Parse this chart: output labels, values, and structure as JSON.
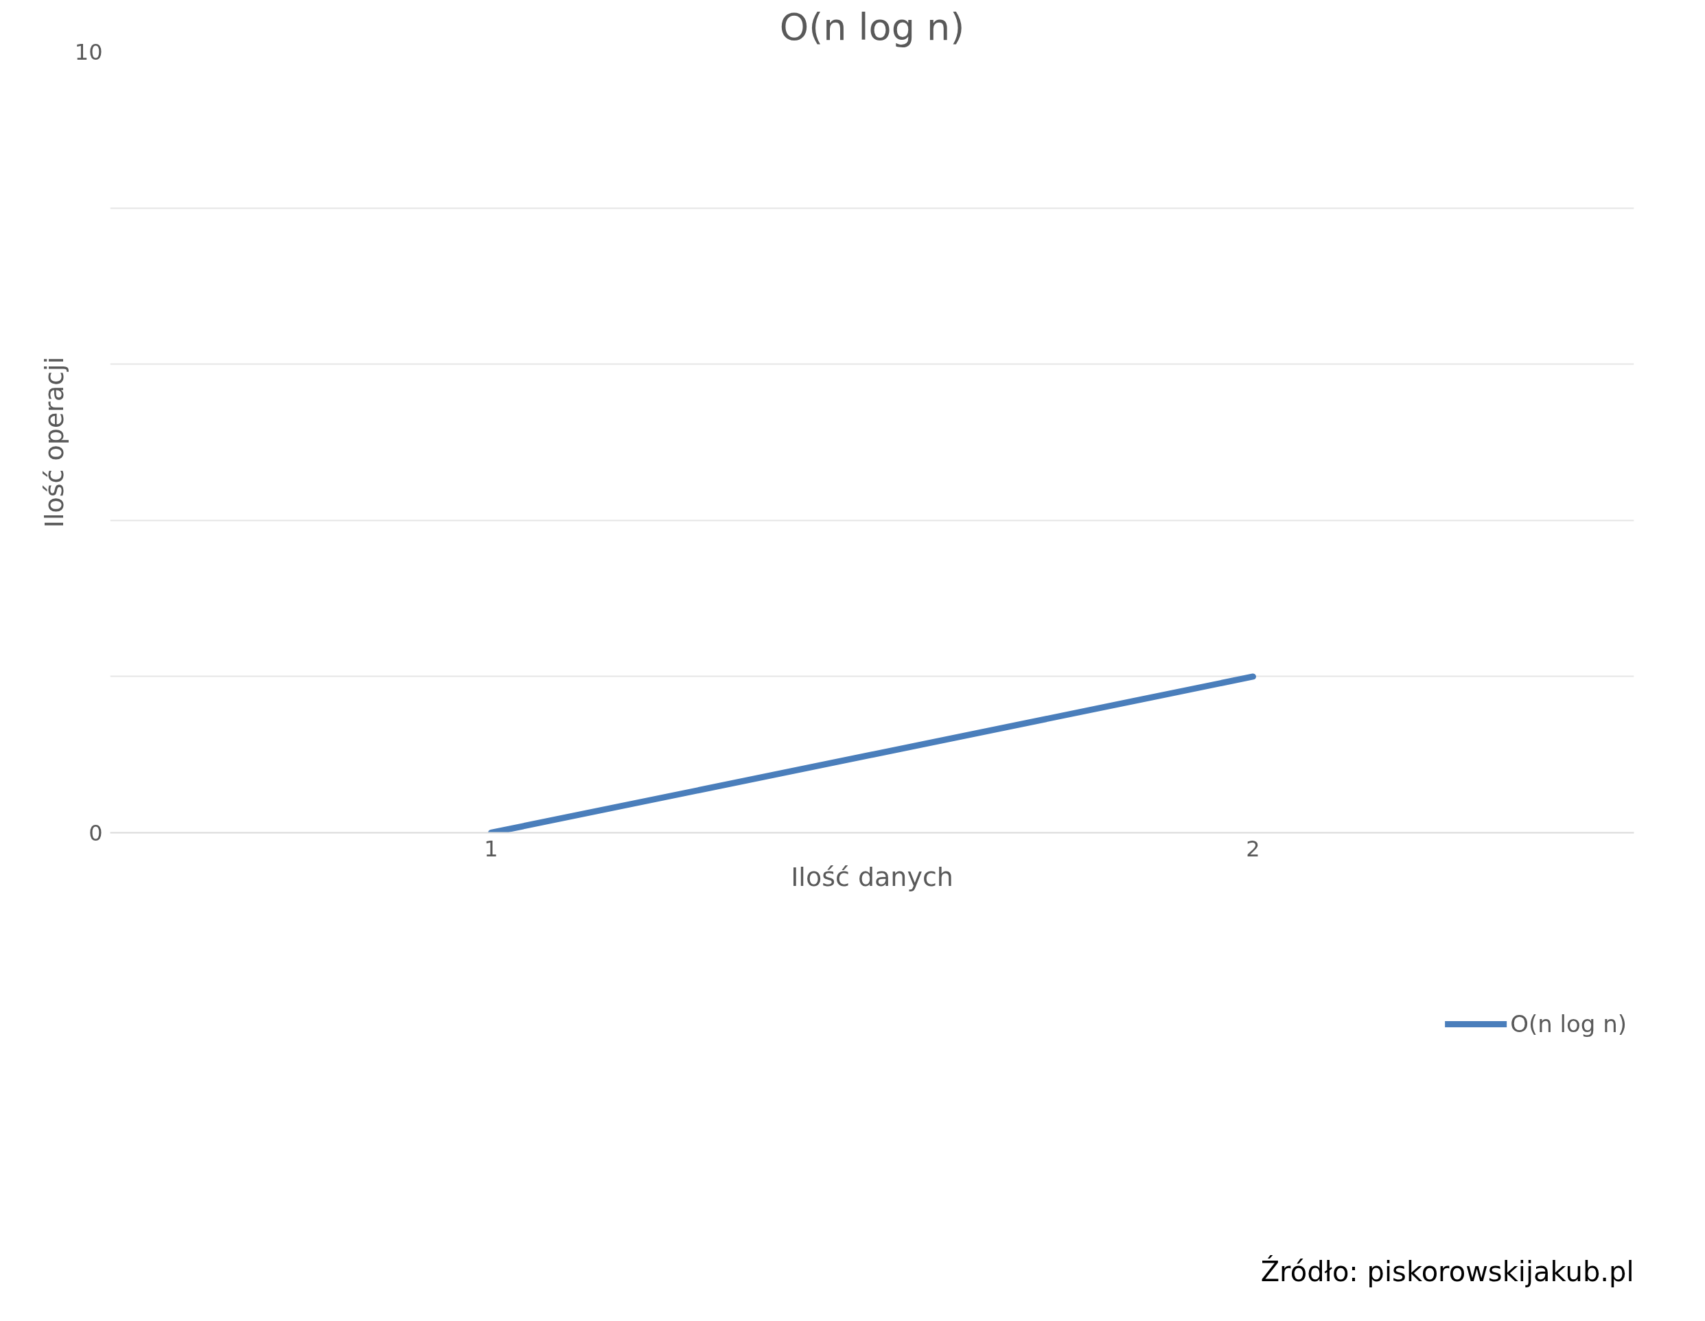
{
  "chart_data": {
    "type": "line",
    "title": "O(n log n)",
    "xlabel": "Ilość danych",
    "ylabel": "Ilość operacji",
    "categories": [
      "1",
      "2"
    ],
    "series": [
      {
        "name": "O(n log n)",
        "color": "#4a7ebb",
        "values": [
          0,
          2
        ]
      }
    ],
    "ylim": [
      0,
      10
    ],
    "yticks": [
      0,
      {
        "value": 2,
        "label": null
      },
      {
        "value": 4,
        "label": null
      },
      {
        "value": 6,
        "label": null
      },
      {
        "value": 8,
        "label": null
      },
      10
    ],
    "grid": "y",
    "legend": "bottom",
    "marker": "none",
    "line_style": "solid",
    "annotations": [
      "Źródło: piskorowskijakub.pl"
    ]
  }
}
